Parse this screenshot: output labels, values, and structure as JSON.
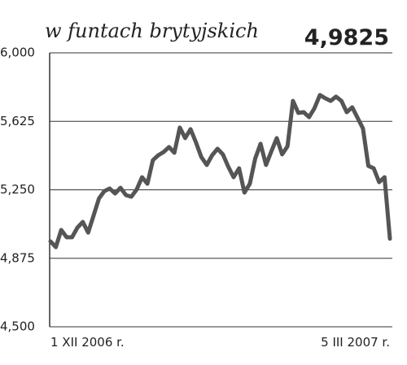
{
  "chart_data": {
    "type": "line",
    "title": "w funtach brytyjskich",
    "categories": [
      "1 XII 2006 r.",
      null,
      null,
      null,
      null,
      null,
      null,
      null,
      null,
      null,
      null,
      null,
      null,
      null,
      null,
      null,
      null,
      null,
      null,
      null,
      null,
      null,
      null,
      null,
      null,
      null,
      null,
      null,
      null,
      null,
      null,
      null,
      null,
      null,
      null,
      null,
      null,
      null,
      null,
      null,
      null,
      null,
      null,
      null,
      null,
      null,
      null,
      null,
      null,
      null,
      null,
      null,
      null,
      null,
      null,
      null,
      null,
      null,
      null,
      null,
      null,
      null,
      null,
      "5 III 2007 r."
    ],
    "values": [
      4.968,
      4.936,
      5.03,
      4.99,
      4.99,
      5.043,
      5.074,
      5.016,
      5.11,
      5.203,
      5.243,
      5.257,
      5.23,
      5.261,
      5.221,
      5.212,
      5.252,
      5.319,
      5.283,
      5.412,
      5.439,
      5.457,
      5.484,
      5.453,
      5.591,
      5.533,
      5.582,
      5.51,
      5.43,
      5.386,
      5.439,
      5.475,
      5.444,
      5.377,
      5.319,
      5.368,
      5.235,
      5.283,
      5.421,
      5.502,
      5.386,
      5.461,
      5.533,
      5.444,
      5.488,
      5.737,
      5.671,
      5.675,
      5.648,
      5.697,
      5.769,
      5.751,
      5.737,
      5.76,
      5.737,
      5.675,
      5.702,
      5.644,
      5.586,
      5.381,
      5.368,
      5.292,
      5.319,
      4.9825
    ],
    "value_labels": [
      null,
      null,
      null,
      null,
      null,
      null,
      null,
      null,
      null,
      null,
      null,
      null,
      null,
      null,
      null,
      null,
      null,
      null,
      null,
      null,
      null,
      null,
      null,
      null,
      null,
      null,
      null,
      null,
      null,
      null,
      null,
      null,
      null,
      null,
      null,
      null,
      null,
      null,
      null,
      null,
      null,
      null,
      null,
      null,
      null,
      null,
      null,
      null,
      null,
      null,
      null,
      null,
      null,
      null,
      null,
      null,
      null,
      null,
      null,
      null,
      null,
      null,
      null,
      "4,9825"
    ],
    "color": "#555555",
    "ylim": [
      4.5,
      6.0
    ],
    "yticks": [
      {
        "value": 4.5,
        "label": "4,500"
      },
      {
        "value": 4.875,
        "label": "4,875"
      },
      {
        "value": 5.25,
        "label": "5,250"
      },
      {
        "value": 5.625,
        "label": "5,625"
      },
      {
        "value": 6.0,
        "label": "6,000"
      }
    ],
    "grid": true
  }
}
